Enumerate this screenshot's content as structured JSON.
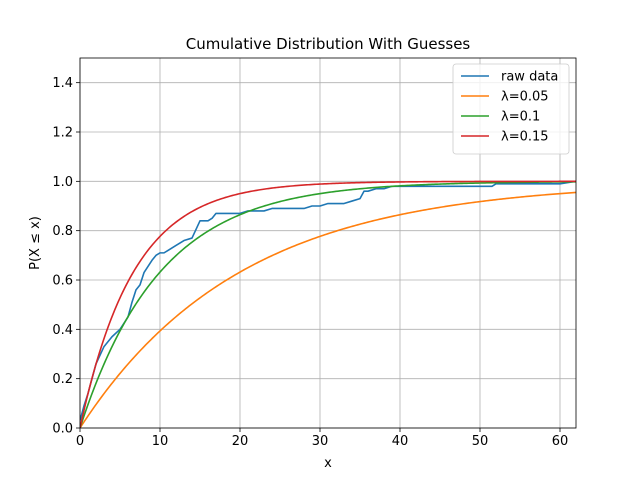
{
  "chart_data": {
    "type": "line",
    "title": "Cumulative Distribution With Guesses",
    "xlabel": "x",
    "ylabel": "P(X ≤ x)",
    "xlim": [
      0,
      62
    ],
    "ylim": [
      0,
      1.5
    ],
    "xticks": [
      0,
      10,
      20,
      30,
      40,
      50,
      60
    ],
    "xtick_labels": [
      "0",
      "10",
      "20",
      "30",
      "40",
      "50",
      "60"
    ],
    "yticks": [
      0.0,
      0.2,
      0.4,
      0.6,
      0.8,
      1.0,
      1.2,
      1.4
    ],
    "ytick_labels": [
      "0.0",
      "0.2",
      "0.4",
      "0.6",
      "0.8",
      "1.0",
      "1.2",
      "1.4"
    ],
    "grid": true,
    "legend_position": "top-right",
    "series": [
      {
        "name": "raw data",
        "color": "#1f77b4",
        "kind": "points",
        "x": [
          0,
          0.5,
          1,
          2,
          3,
          4,
          5,
          6,
          6.5,
          7,
          7.5,
          8,
          9,
          9.5,
          10,
          10.5,
          11,
          12,
          13,
          14,
          15,
          16,
          16.5,
          17,
          18,
          19,
          20,
          21,
          22,
          23,
          24,
          25,
          26,
          27,
          28,
          29,
          30,
          31,
          32,
          33,
          34,
          35,
          35.5,
          36,
          37,
          38,
          39,
          40,
          45,
          50,
          51.5,
          52,
          55,
          60,
          62
        ],
        "y": [
          0.03,
          0.09,
          0.14,
          0.26,
          0.33,
          0.37,
          0.4,
          0.45,
          0.51,
          0.56,
          0.58,
          0.63,
          0.68,
          0.7,
          0.71,
          0.71,
          0.72,
          0.74,
          0.76,
          0.77,
          0.84,
          0.84,
          0.85,
          0.87,
          0.87,
          0.87,
          0.87,
          0.88,
          0.88,
          0.88,
          0.89,
          0.89,
          0.89,
          0.89,
          0.89,
          0.9,
          0.9,
          0.91,
          0.91,
          0.91,
          0.92,
          0.93,
          0.96,
          0.96,
          0.97,
          0.97,
          0.98,
          0.98,
          0.98,
          0.98,
          0.98,
          0.99,
          0.99,
          0.99,
          1.0
        ]
      },
      {
        "name": "λ=0.05",
        "color": "#ff7f0e",
        "kind": "exponential_cdf",
        "lambda": 0.05
      },
      {
        "name": "λ=0.1",
        "color": "#2ca02c",
        "kind": "exponential_cdf",
        "lambda": 0.1
      },
      {
        "name": "λ=0.15",
        "color": "#d62728",
        "kind": "exponential_cdf",
        "lambda": 0.15
      }
    ]
  }
}
